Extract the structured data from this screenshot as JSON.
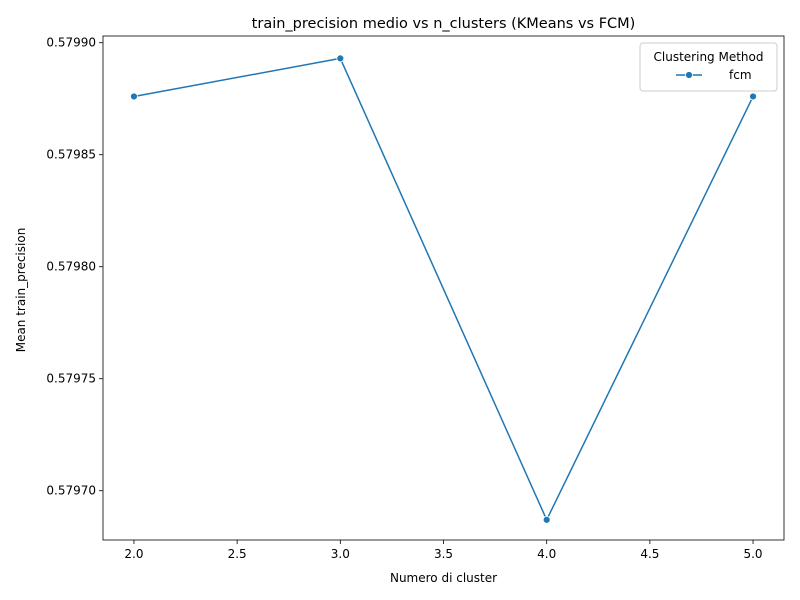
{
  "chart_data": {
    "type": "line",
    "title": "train_precision medio vs n_clusters (KMeans vs FCM)",
    "xlabel": "Numero di cluster",
    "ylabel": "Mean train_precision",
    "xlim": [
      1.85,
      5.15
    ],
    "ylim": [
      0.579678,
      0.579903
    ],
    "x_ticks": [
      2.0,
      2.5,
      3.0,
      3.5,
      4.0,
      4.5,
      5.0
    ],
    "x_tick_labels": [
      "2.0",
      "2.5",
      "3.0",
      "3.5",
      "4.0",
      "4.5",
      "5.0"
    ],
    "y_ticks": [
      0.5797,
      0.57975,
      0.5798,
      0.57985,
      0.5799
    ],
    "y_tick_labels": [
      "0.57970",
      "0.57975",
      "0.57980",
      "0.57985",
      "0.57990"
    ],
    "grid": false,
    "legend": {
      "title": "Clustering Method",
      "placement": "top-right"
    },
    "series": [
      {
        "name": "fcm",
        "color": "#1f77b4",
        "marker": "circle",
        "x": [
          2.0,
          3.0,
          4.0,
          5.0
        ],
        "y": [
          0.579876,
          0.579893,
          0.579687,
          0.579876
        ]
      }
    ]
  }
}
